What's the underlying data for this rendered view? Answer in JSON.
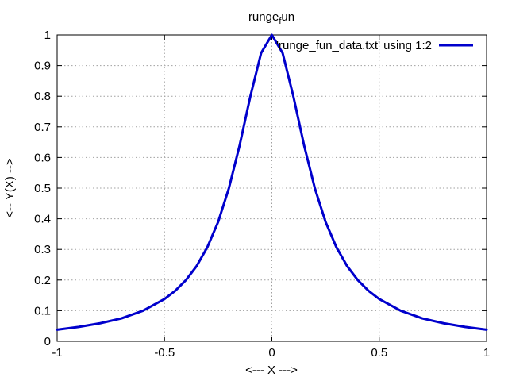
{
  "chart_data": {
    "type": "line",
    "title_main": "runge",
    "title_sub": "f",
    "title_tail": "un",
    "xlabel": "<--- X --->",
    "ylabel": "<-- Y(X) -->",
    "xlim": [
      -1,
      1
    ],
    "ylim": [
      0,
      1
    ],
    "x_ticks": [
      -1,
      -0.5,
      0,
      0.5,
      1
    ],
    "x_tick_labels": [
      "-1",
      "-0.5",
      "0",
      "0.5",
      "1"
    ],
    "y_ticks": [
      0,
      0.1,
      0.2,
      0.3,
      0.4,
      0.5,
      0.6,
      0.7,
      0.8,
      0.9,
      1
    ],
    "y_tick_labels": [
      "0",
      "0.1",
      "0.2",
      "0.3",
      "0.4",
      "0.5",
      "0.6",
      "0.7",
      "0.8",
      "0.9",
      "1"
    ],
    "grid": true,
    "legend_position": "top-right",
    "series": [
      {
        "name": "'runge_fun_data.txt' using 1:2",
        "color": "#0000cc",
        "x": [
          -1,
          -0.9,
          -0.8,
          -0.7,
          -0.6,
          -0.5,
          -0.45,
          -0.4,
          -0.35,
          -0.3,
          -0.25,
          -0.2,
          -0.15,
          -0.1,
          -0.05,
          0,
          0.05,
          0.1,
          0.15,
          0.2,
          0.25,
          0.3,
          0.35,
          0.4,
          0.45,
          0.5,
          0.6,
          0.7,
          0.8,
          0.9,
          1
        ],
        "y": [
          0.038,
          0.047,
          0.059,
          0.075,
          0.1,
          0.138,
          0.165,
          0.2,
          0.246,
          0.308,
          0.39,
          0.5,
          0.64,
          0.8,
          0.941,
          1,
          0.941,
          0.8,
          0.64,
          0.5,
          0.39,
          0.308,
          0.246,
          0.2,
          0.165,
          0.138,
          0.1,
          0.075,
          0.059,
          0.047,
          0.038
        ]
      }
    ]
  }
}
